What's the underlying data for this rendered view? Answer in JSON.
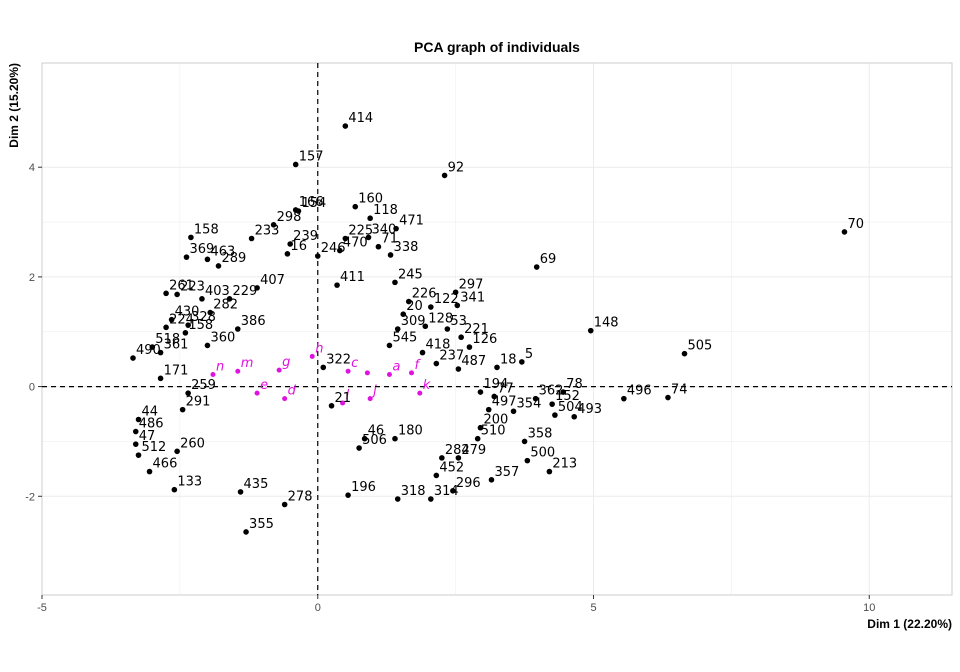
{
  "chart_data": {
    "type": "scatter",
    "title": "PCA graph of individuals",
    "xlabel": "Dim 1 (22.20%)",
    "ylabel": "Dim 2 (15.20%)",
    "xlim": [
      -5.0,
      11.5
    ],
    "ylim": [
      -3.8,
      5.9
    ],
    "x_ticks": [
      -5,
      0,
      5,
      10
    ],
    "y_ticks": [
      -2,
      0,
      2,
      4
    ],
    "grid": true,
    "reference_lines": {
      "x": 0,
      "y": 0,
      "style": "dashed"
    },
    "colors": {
      "active": "#000000",
      "supplementary": "#e012e0",
      "grid": "#ebebeb",
      "panel_border": "#cccccc"
    },
    "series": [
      {
        "name": "active individuals",
        "points": [
          {
            "label": "414",
            "x": 0.5,
            "y": 4.75
          },
          {
            "label": "157",
            "x": -0.4,
            "y": 4.05
          },
          {
            "label": "92",
            "x": 2.3,
            "y": 3.85
          },
          {
            "label": "70",
            "x": 9.55,
            "y": 2.82
          },
          {
            "label": "166",
            "x": -0.4,
            "y": 3.22
          },
          {
            "label": "160",
            "x": 0.68,
            "y": 3.28
          },
          {
            "label": "154",
            "x": -0.35,
            "y": 3.2
          },
          {
            "label": "118",
            "x": 0.95,
            "y": 3.07
          },
          {
            "label": "471",
            "x": 1.42,
            "y": 2.88
          },
          {
            "label": "298",
            "x": -0.8,
            "y": 2.95
          },
          {
            "label": "158",
            "x": -2.3,
            "y": 2.72
          },
          {
            "label": "340",
            "x": 0.92,
            "y": 2.72
          },
          {
            "label": "233",
            "x": -1.2,
            "y": 2.7
          },
          {
            "label": "239",
            "x": -0.5,
            "y": 2.6
          },
          {
            "label": "69",
            "x": 3.97,
            "y": 2.18
          },
          {
            "label": "369",
            "x": -2.38,
            "y": 2.36
          },
          {
            "label": "338",
            "x": 1.32,
            "y": 2.4
          },
          {
            "label": "246",
            "x": 0.0,
            "y": 2.38
          },
          {
            "label": "470",
            "x": 0.4,
            "y": 2.48
          },
          {
            "label": "463",
            "x": -2.0,
            "y": 2.32
          },
          {
            "label": "71",
            "x": 1.1,
            "y": 2.55
          },
          {
            "label": "148",
            "x": 4.95,
            "y": 1.02
          },
          {
            "label": "505",
            "x": 6.65,
            "y": 0.6
          },
          {
            "label": "297",
            "x": 2.5,
            "y": 1.72
          },
          {
            "label": "341",
            "x": 2.53,
            "y": 1.48
          },
          {
            "label": "245",
            "x": 1.4,
            "y": 1.9
          },
          {
            "label": "122",
            "x": 2.05,
            "y": 1.45
          },
          {
            "label": "226",
            "x": 1.65,
            "y": 1.55
          },
          {
            "label": "411",
            "x": 0.35,
            "y": 1.85
          },
          {
            "label": "261",
            "x": -2.75,
            "y": 1.7
          },
          {
            "label": "223",
            "x": -2.55,
            "y": 1.68
          },
          {
            "label": "403",
            "x": -2.1,
            "y": 1.6
          },
          {
            "label": "20",
            "x": 1.55,
            "y": 1.32
          },
          {
            "label": "128",
            "x": 1.95,
            "y": 1.1
          },
          {
            "label": "53",
            "x": 2.35,
            "y": 1.05
          },
          {
            "label": "309",
            "x": 1.45,
            "y": 1.05
          },
          {
            "label": "221",
            "x": 2.6,
            "y": 0.9
          },
          {
            "label": "126",
            "x": 2.75,
            "y": 0.72
          },
          {
            "label": "430",
            "x": -2.65,
            "y": 1.22
          },
          {
            "label": "224",
            "x": -2.75,
            "y": 1.08
          },
          {
            "label": "328",
            "x": -2.35,
            "y": 1.12
          },
          {
            "label": "158b",
            "x": -2.4,
            "y": 0.98
          },
          {
            "label": "5",
            "x": 3.7,
            "y": 0.45
          },
          {
            "label": "18",
            "x": 3.25,
            "y": 0.35
          },
          {
            "label": "237",
            "x": 2.15,
            "y": 0.42
          },
          {
            "label": "487",
            "x": 2.55,
            "y": 0.32
          },
          {
            "label": "490",
            "x": -3.35,
            "y": 0.52
          },
          {
            "label": "518",
            "x": -3.0,
            "y": 0.72
          },
          {
            "label": "361",
            "x": -2.85,
            "y": 0.62
          },
          {
            "label": "171",
            "x": -2.85,
            "y": 0.15
          },
          {
            "label": "545",
            "x": 1.3,
            "y": 0.75
          },
          {
            "label": "418",
            "x": 1.9,
            "y": 0.62
          },
          {
            "label": "78",
            "x": 4.45,
            "y": -0.1
          },
          {
            "label": "496",
            "x": 5.55,
            "y": -0.22
          },
          {
            "label": "74",
            "x": 6.35,
            "y": -0.2
          },
          {
            "label": "152",
            "x": 4.25,
            "y": -0.32
          },
          {
            "label": "362",
            "x": 3.95,
            "y": -0.22
          },
          {
            "label": "493",
            "x": 4.65,
            "y": -0.55
          },
          {
            "label": "504",
            "x": 4.3,
            "y": -0.52
          },
          {
            "label": "354",
            "x": 3.55,
            "y": -0.45
          },
          {
            "label": "497",
            "x": 3.1,
            "y": -0.42
          },
          {
            "label": "77",
            "x": 3.2,
            "y": -0.18
          },
          {
            "label": "194",
            "x": 2.95,
            "y": -0.1
          },
          {
            "label": "259",
            "x": -2.35,
            "y": -0.12
          },
          {
            "label": "291",
            "x": -2.45,
            "y": -0.42
          },
          {
            "label": "44",
            "x": -3.25,
            "y": -0.6
          },
          {
            "label": "486",
            "x": -3.3,
            "y": -0.82
          },
          {
            "label": "47",
            "x": -3.3,
            "y": -1.05
          },
          {
            "label": "512",
            "x": -3.25,
            "y": -1.25
          },
          {
            "label": "466",
            "x": -3.05,
            "y": -1.55
          },
          {
            "label": "133",
            "x": -2.6,
            "y": -1.88
          },
          {
            "label": "260",
            "x": -2.55,
            "y": -1.18
          },
          {
            "label": "358",
            "x": 3.75,
            "y": -1.0
          },
          {
            "label": "200",
            "x": 2.95,
            "y": -0.75
          },
          {
            "label": "510",
            "x": 2.9,
            "y": -0.95
          },
          {
            "label": "500",
            "x": 3.8,
            "y": -1.35
          },
          {
            "label": "213",
            "x": 4.2,
            "y": -1.55
          },
          {
            "label": "279",
            "x": 2.55,
            "y": -1.3
          },
          {
            "label": "357",
            "x": 3.15,
            "y": -1.7
          },
          {
            "label": "284",
            "x": 2.25,
            "y": -1.3
          },
          {
            "label": "452",
            "x": 2.15,
            "y": -1.62
          },
          {
            "label": "296",
            "x": 2.45,
            "y": -1.9
          },
          {
            "label": "314",
            "x": 2.05,
            "y": -2.05
          },
          {
            "label": "318",
            "x": 1.45,
            "y": -2.05
          },
          {
            "label": "196",
            "x": 0.55,
            "y": -1.98
          },
          {
            "label": "278",
            "x": -0.6,
            "y": -2.15
          },
          {
            "label": "435",
            "x": -1.4,
            "y": -1.92
          },
          {
            "label": "355",
            "x": -1.3,
            "y": -2.65
          },
          {
            "label": "180",
            "x": 1.4,
            "y": -0.95
          },
          {
            "label": "46",
            "x": 0.85,
            "y": -0.95
          },
          {
            "label": "506",
            "x": 0.75,
            "y": -1.12
          },
          {
            "label": "21",
            "x": 0.25,
            "y": -0.35
          },
          {
            "label": "322",
            "x": 0.1,
            "y": 0.35
          },
          {
            "label": "225",
            "x": 0.5,
            "y": 2.7
          },
          {
            "label": "16",
            "x": -0.55,
            "y": 2.42
          },
          {
            "label": "289",
            "x": -1.8,
            "y": 2.2
          },
          {
            "label": "386",
            "x": -1.45,
            "y": 1.05
          },
          {
            "label": "360",
            "x": -2.0,
            "y": 0.75
          },
          {
            "label": "282",
            "x": -1.95,
            "y": 1.35
          },
          {
            "label": "229",
            "x": -1.6,
            "y": 1.6
          },
          {
            "label": "407",
            "x": -1.1,
            "y": 1.8
          }
        ]
      },
      {
        "name": "supplementary individuals",
        "points": [
          {
            "label": "n",
            "x": -1.9,
            "y": 0.22
          },
          {
            "label": "m",
            "x": -1.45,
            "y": 0.28
          },
          {
            "label": "g",
            "x": -0.7,
            "y": 0.3
          },
          {
            "label": "h",
            "x": -0.1,
            "y": 0.55
          },
          {
            "label": "e",
            "x": -1.1,
            "y": -0.12
          },
          {
            "label": "d",
            "x": -0.6,
            "y": -0.22
          },
          {
            "label": "c",
            "x": 0.55,
            "y": 0.28
          },
          {
            "label": "b",
            "x": 0.9,
            "y": 0.25
          },
          {
            "label": "a",
            "x": 1.3,
            "y": 0.22
          },
          {
            "label": "f",
            "x": 1.7,
            "y": 0.25
          },
          {
            "label": "k",
            "x": 1.85,
            "y": -0.12
          },
          {
            "label": "j",
            "x": 0.95,
            "y": -0.22
          },
          {
            "label": "l",
            "x": 0.45,
            "y": -0.3
          }
        ]
      }
    ]
  }
}
